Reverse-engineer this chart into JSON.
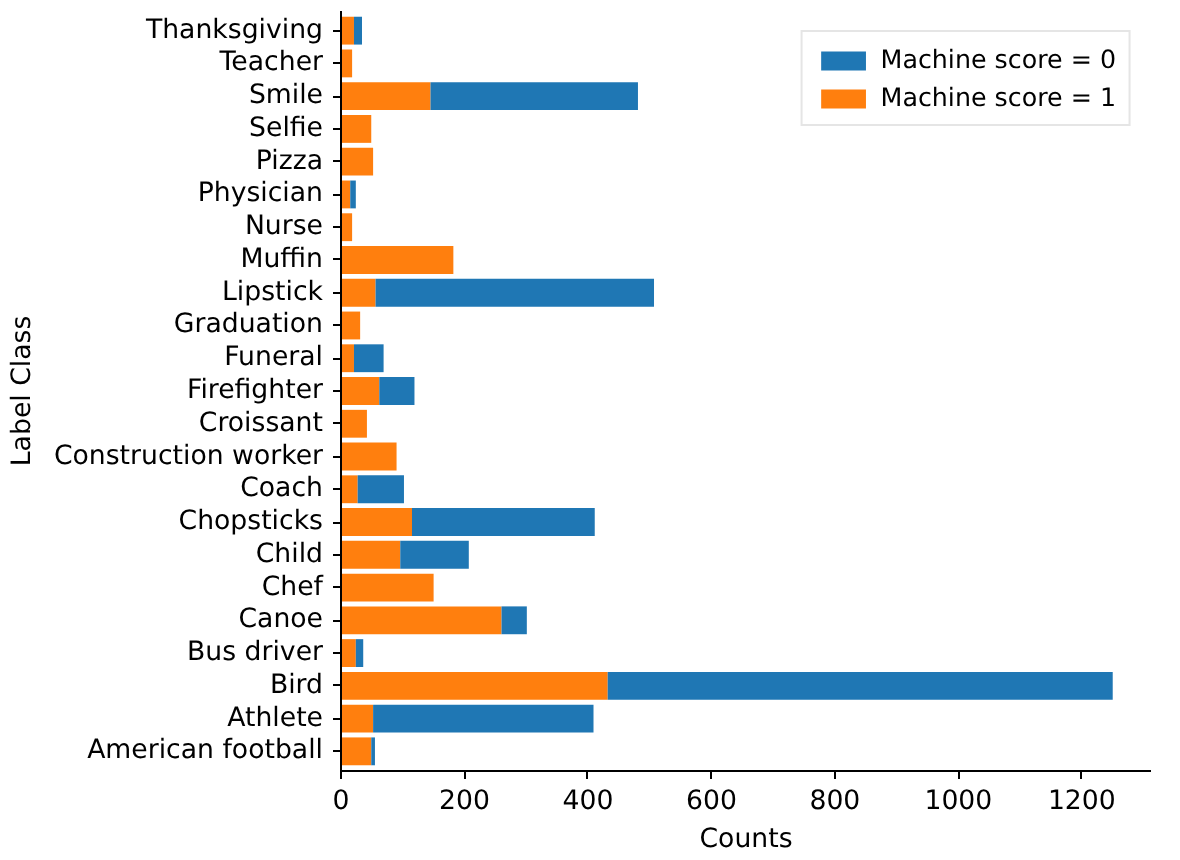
{
  "chart_data": {
    "type": "bar",
    "orientation": "horizontal",
    "stacked": true,
    "xlabel": "Counts",
    "ylabel": "Label Class",
    "categories": [
      "Thanksgiving",
      "Teacher",
      "Smile",
      "Selfie",
      "Pizza",
      "Physician",
      "Nurse",
      "Muffin",
      "Lipstick",
      "Graduation",
      "Funeral",
      "Firefighter",
      "Croissant",
      "Construction worker",
      "Coach",
      "Chopsticks",
      "Child",
      "Chef",
      "Canoe",
      "Bus driver",
      "Bird",
      "Athlete",
      "American football"
    ],
    "series": [
      {
        "name": "Machine score = 1",
        "color": "#ff7f0e",
        "values": [
          21,
          18,
          145,
          49,
          52,
          15,
          18,
          182,
          56,
          31,
          21,
          62,
          42,
          90,
          27,
          115,
          96,
          150,
          260,
          24,
          432,
          52,
          49
        ]
      },
      {
        "name": "Machine score = 0",
        "color": "#1f77b4",
        "values": [
          13,
          0,
          336,
          0,
          0,
          9,
          0,
          0,
          451,
          0,
          48,
          57,
          0,
          0,
          75,
          296,
          111,
          0,
          41,
          12,
          818,
          357,
          6
        ]
      }
    ],
    "xlim": [
      0,
      1312
    ],
    "xticks": [
      0,
      200,
      400,
      600,
      800,
      1000,
      1200
    ],
    "grid": false,
    "legend": "top right"
  }
}
